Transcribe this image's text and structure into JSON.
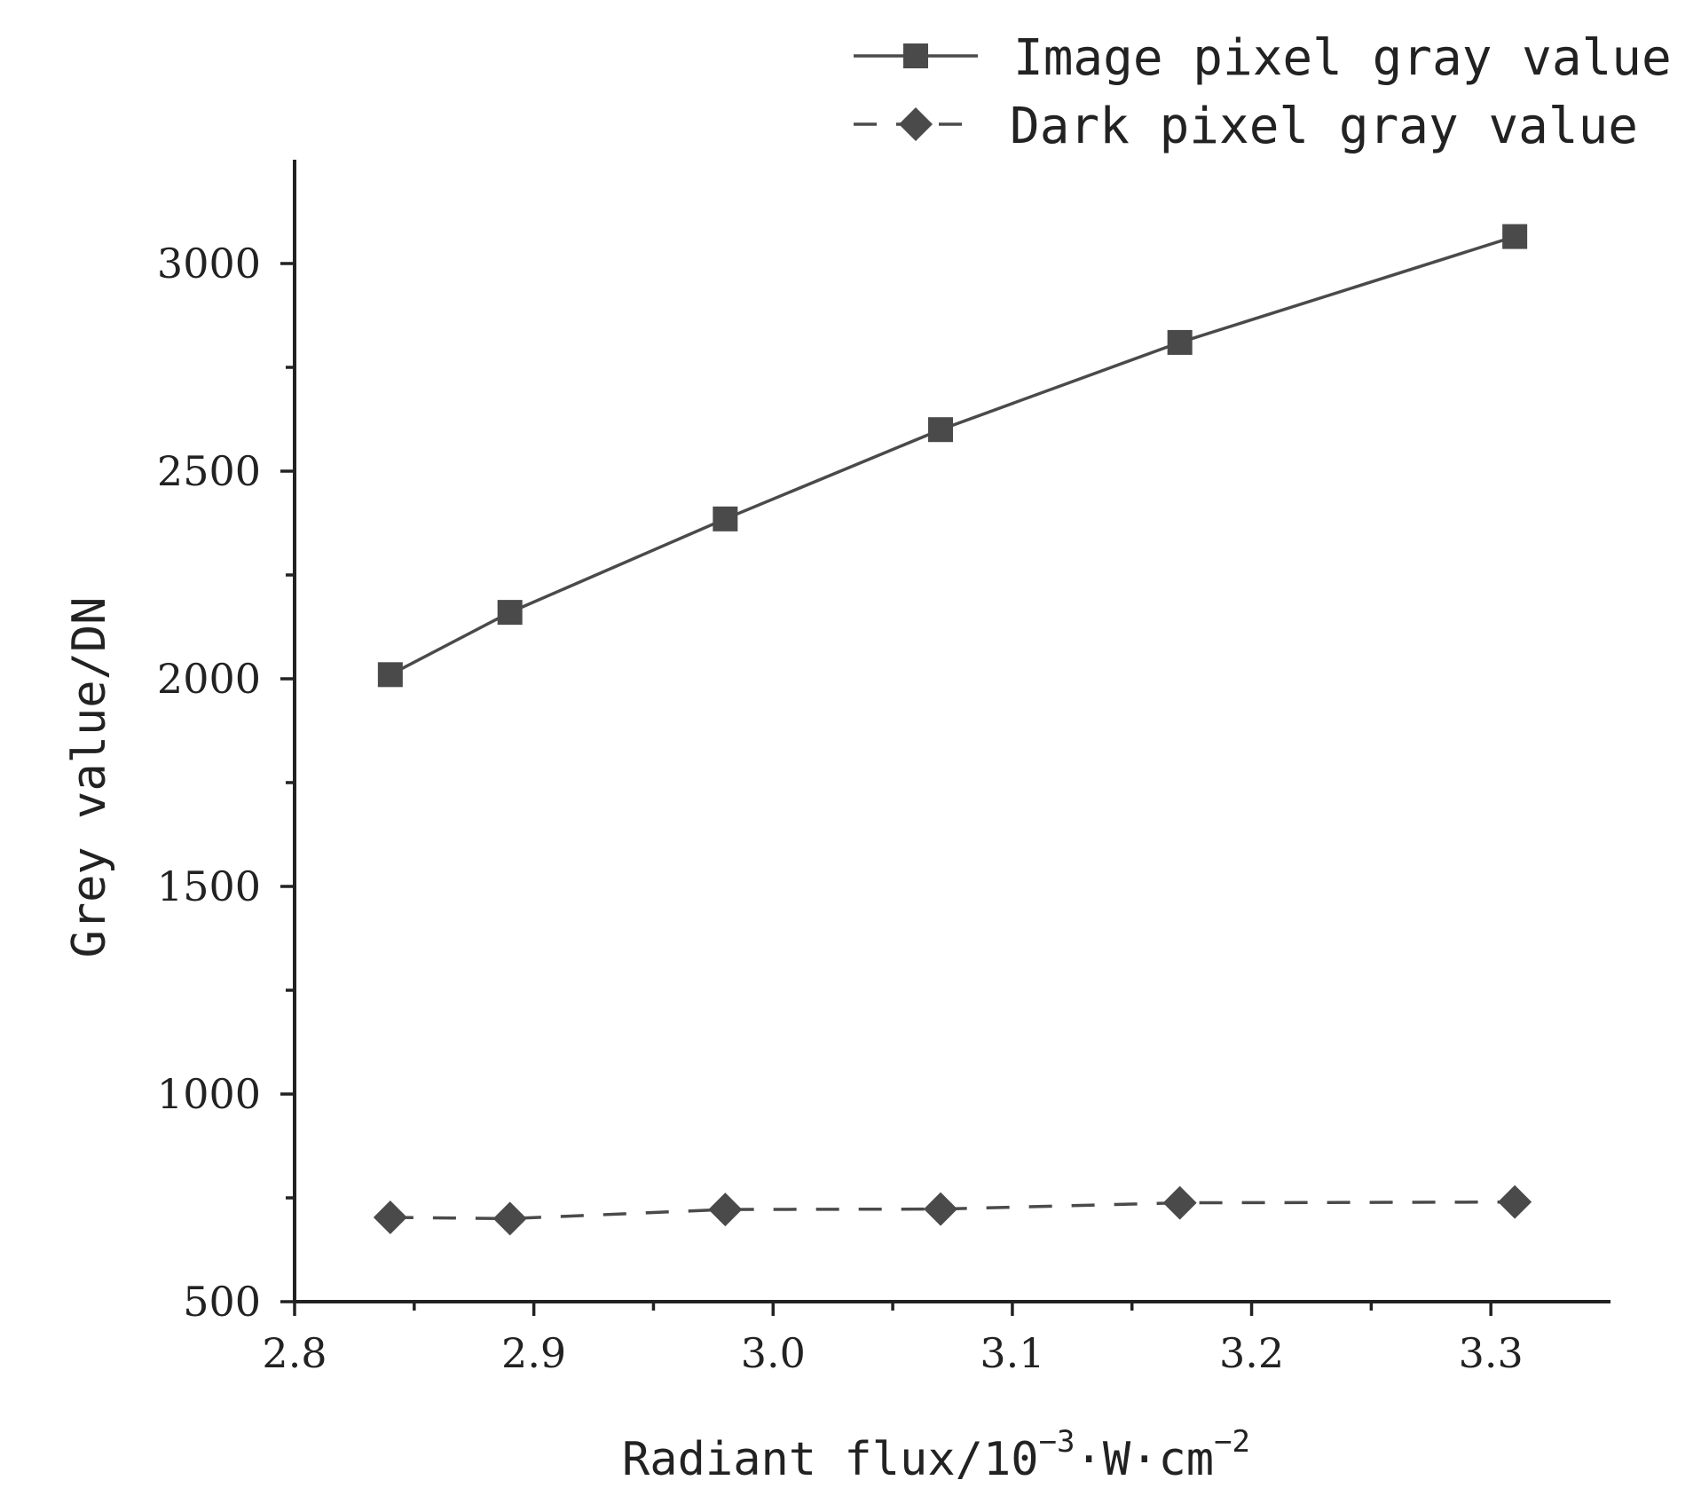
{
  "chart_data": {
    "type": "line",
    "xlabel": "Radiant flux/10",
    "xlabel_sup1": "−3",
    "xlabel_mid": "·W·cm",
    "xlabel_sup2": "−2",
    "ylabel": "Grey value/DN",
    "xlim": [
      2.8,
      3.35
    ],
    "ylim": [
      500,
      3250
    ],
    "x_ticks": [
      2.8,
      2.9,
      3.0,
      3.1,
      3.2,
      3.3
    ],
    "x_tick_labels": [
      "2.8",
      "2.9",
      "3.0",
      "3.1",
      "3.2",
      "3.3"
    ],
    "y_ticks": [
      500,
      1000,
      1500,
      2000,
      2500,
      3000
    ],
    "y_tick_labels": [
      "500",
      "1000",
      "1500",
      "2000",
      "2500",
      "3000"
    ],
    "legend_position": "top-right",
    "grid": false,
    "x": [
      2.84,
      2.89,
      2.98,
      3.07,
      3.17,
      3.31
    ],
    "series": [
      {
        "name": "Image pixel gray value",
        "marker": "square",
        "line": "solid",
        "color": "#4a4a4a",
        "values": [
          2010,
          2160,
          2385,
          2600,
          2810,
          3065
        ]
      },
      {
        "name": "Dark pixel gray value",
        "marker": "diamond",
        "line": "dashed",
        "color": "#4a4a4a",
        "values": [
          703,
          700,
          722,
          723,
          738,
          740
        ]
      }
    ]
  }
}
